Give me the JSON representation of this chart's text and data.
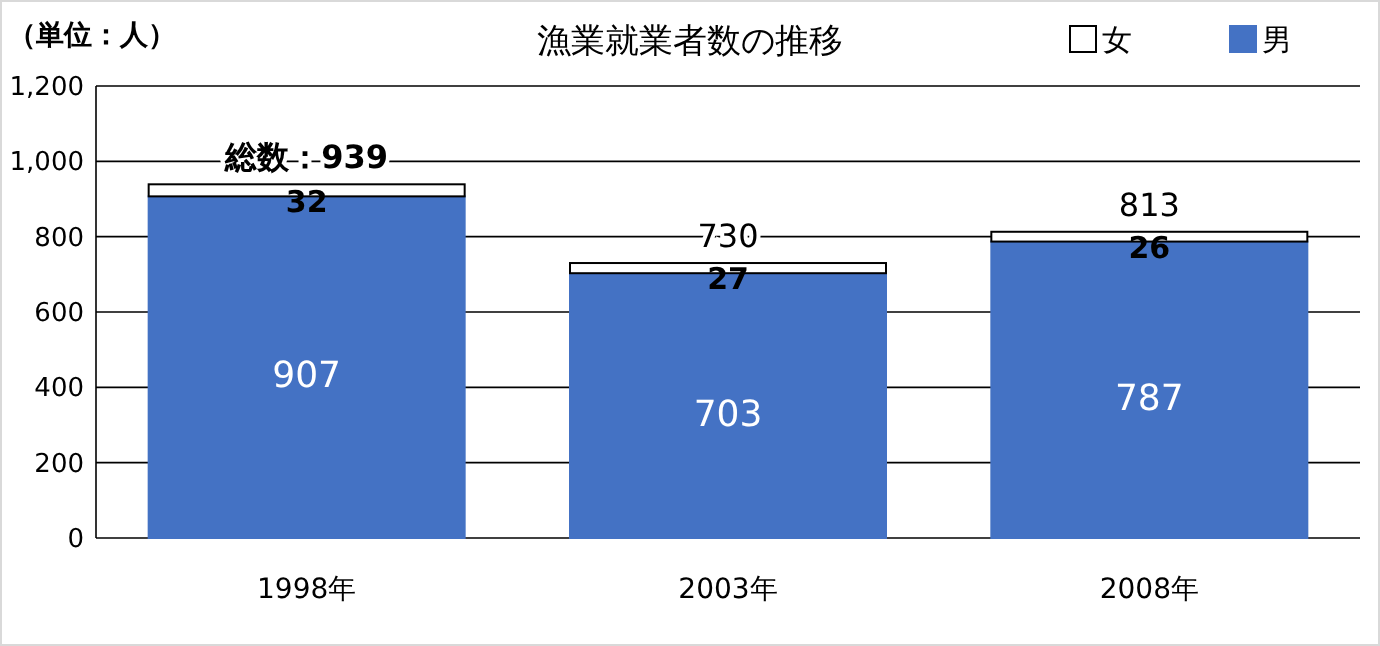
{
  "chart_data": {
    "type": "bar",
    "title": "漁業就業者数の推移",
    "ylabel": "（単位：人）",
    "categories": [
      "1998年",
      "2003年",
      "2008年"
    ],
    "stacked": true,
    "data_labels": true,
    "grid": "y",
    "legend": "top right",
    "series": [
      {
        "name": "男",
        "color": "#4472c4",
        "values": [
          907,
          703,
          787
        ]
      },
      {
        "name": "女",
        "color": "#ffffff",
        "values": [
          32,
          27,
          26
        ]
      }
    ],
    "totals": [
      "総数：939",
      "730",
      "813"
    ],
    "ylim": [
      0,
      1200
    ],
    "yticks": [
      0,
      200,
      400,
      600,
      800,
      {
        "value": 1000,
        "label": "1,000"
      },
      {
        "value": 1200,
        "label": "1,200"
      }
    ]
  }
}
